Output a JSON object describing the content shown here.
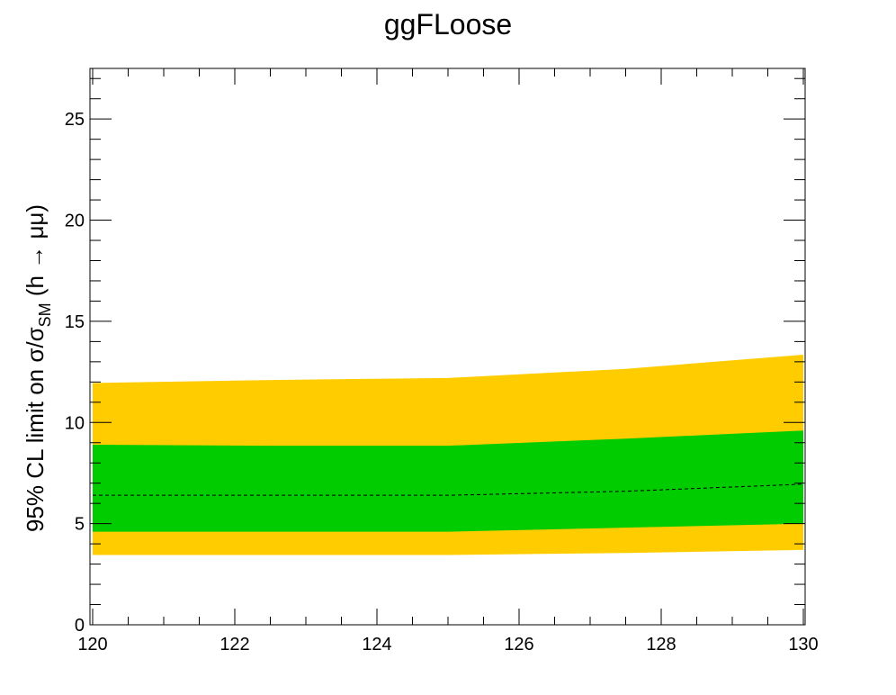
{
  "chart_data": {
    "type": "area",
    "title": "ggFLoose",
    "ylabel": {
      "main": "95% CL limit on σ/σ",
      "subscript": "SM",
      "suffix": " (h → μμ)"
    },
    "xlim": [
      120,
      130
    ],
    "ylim": [
      0,
      27.5
    ],
    "x_ticks": [
      120,
      122,
      124,
      126,
      128,
      130
    ],
    "y_ticks": [
      0,
      5,
      10,
      15,
      20,
      25
    ],
    "x": [
      120,
      122.5,
      125,
      127.5,
      130
    ],
    "series": [
      {
        "role": "band-2sigma",
        "color": "#ffcc00",
        "lower": [
          3.45,
          3.45,
          3.45,
          3.55,
          3.7
        ],
        "upper": [
          11.95,
          12.1,
          12.2,
          12.65,
          13.35
        ]
      },
      {
        "role": "band-1sigma",
        "color": "#00cc00",
        "lower": [
          4.6,
          4.6,
          4.6,
          4.8,
          5.0
        ],
        "upper": [
          8.9,
          8.85,
          8.85,
          9.2,
          9.6
        ]
      },
      {
        "role": "expected",
        "color": "#000000",
        "style": "dashed",
        "values": [
          6.4,
          6.4,
          6.4,
          6.6,
          6.95
        ]
      }
    ],
    "grid": false
  }
}
